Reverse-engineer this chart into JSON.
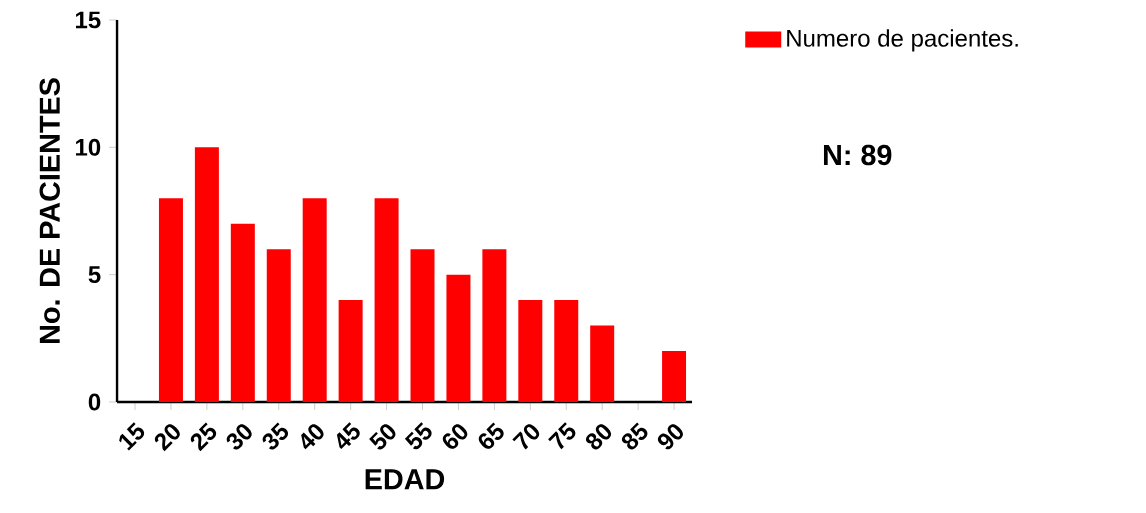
{
  "chart_data": {
    "type": "bar",
    "xlabel": "EDAD",
    "ylabel": "No. DE PACIENTES",
    "categories": [
      "15",
      "20",
      "25",
      "30",
      "35",
      "40",
      "45",
      "50",
      "55",
      "60",
      "65",
      "70",
      "75",
      "80",
      "85",
      "90"
    ],
    "series": [
      {
        "name": "Numero de pacientes.",
        "color": "#ff0000",
        "values": [
          0,
          8,
          10,
          7,
          6,
          8,
          4,
          8,
          6,
          5,
          6,
          4,
          4,
          3,
          0,
          2
        ]
      }
    ],
    "ylim": [
      0,
      15
    ],
    "yticks": [
      0,
      5,
      10,
      15
    ],
    "grid": false,
    "legend": "top right",
    "annotations": [
      "N: 89"
    ]
  }
}
